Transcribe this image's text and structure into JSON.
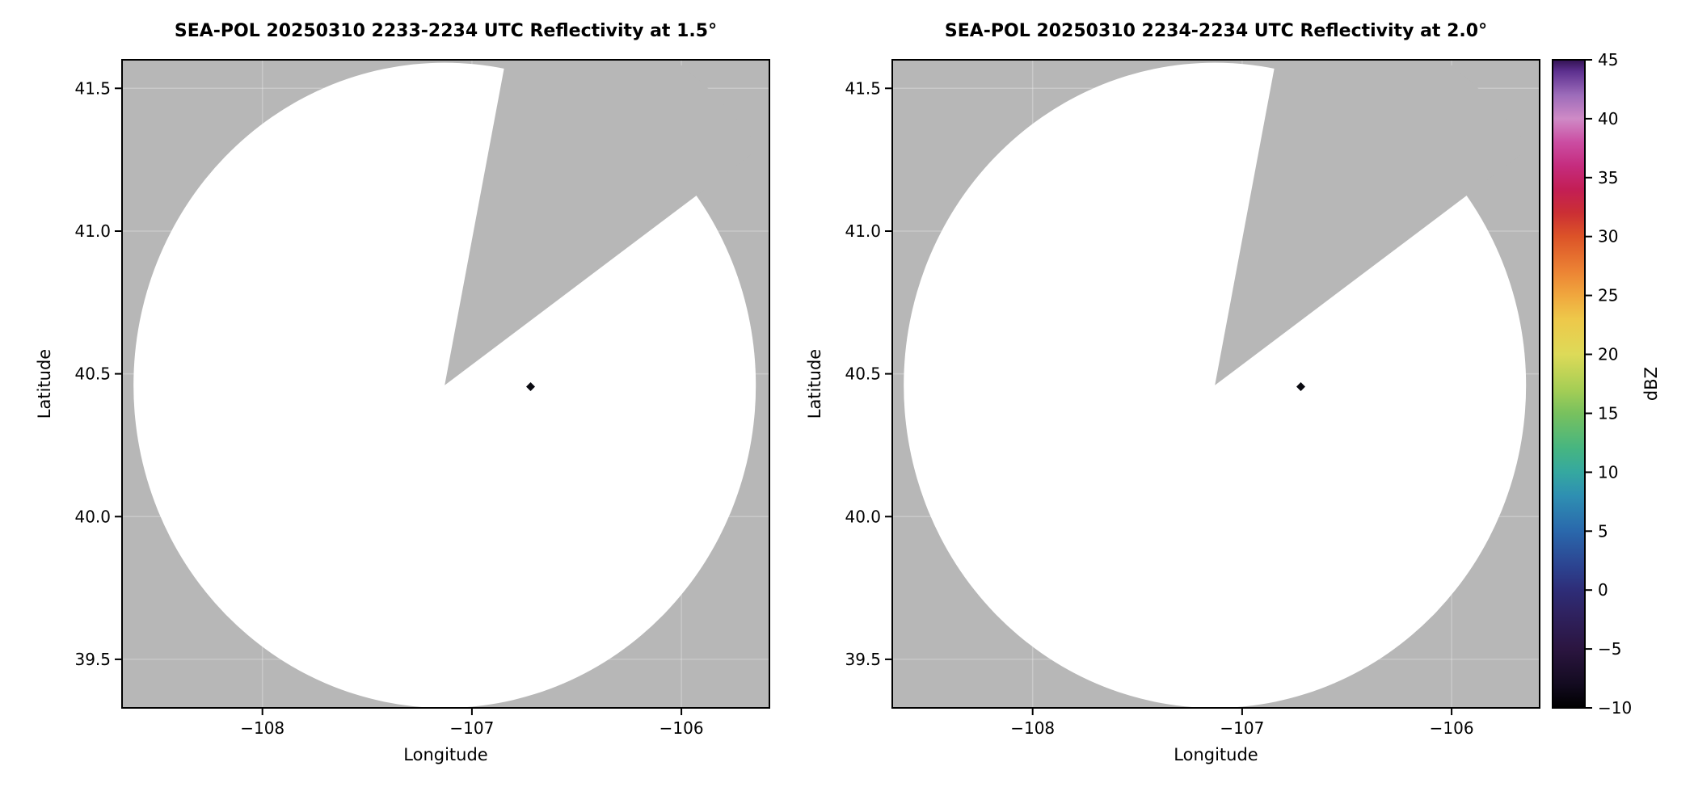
{
  "figure": {
    "background": "#ffffff"
  },
  "colors": {
    "nodata_gray": "#b7b7b7",
    "coverage_white": "#ffffff",
    "axes_border": "#000000",
    "text": "#000000",
    "gridline": "#ffffff"
  },
  "chart_data": [
    {
      "type": "radar_ppi",
      "title": "SEA-POL 20250310 2233-2234 UTC Reflectivity at 1.5°",
      "xlabel": "Longitude",
      "ylabel": "Latitude",
      "xlim": [
        -108.67,
        -105.58
      ],
      "ylim": [
        39.33,
        41.6
      ],
      "xticks": [
        -108,
        -107,
        -106
      ],
      "xtick_labels": [
        "−108",
        "−107",
        "−106"
      ],
      "yticks": [
        39.5,
        40.0,
        40.5,
        41.0,
        41.5
      ],
      "ytick_labels": [
        "39.5",
        "40.0",
        "40.5",
        "41.0",
        "41.5"
      ],
      "grid": true,
      "radar": {
        "lon": -107.13,
        "lat": 40.46,
        "range_lat_deg": 1.13
      },
      "blanked_sector_az_deg": [
        11,
        54
      ],
      "echoes": [
        {
          "lon": -106.72,
          "lat": 40.455,
          "dbz": -10,
          "color": "#0a0a10"
        }
      ]
    },
    {
      "type": "radar_ppi",
      "title": "SEA-POL 20250310 2234-2234 UTC Reflectivity at 2.0°",
      "xlabel": "Longitude",
      "ylabel": "Latitude",
      "xlim": [
        -108.67,
        -105.58
      ],
      "ylim": [
        39.33,
        41.6
      ],
      "xticks": [
        -108,
        -107,
        -106
      ],
      "xtick_labels": [
        "−108",
        "−107",
        "−106"
      ],
      "yticks": [
        39.5,
        40.0,
        40.5,
        41.0,
        41.5
      ],
      "ytick_labels": [
        "39.5",
        "40.0",
        "40.5",
        "41.0",
        "41.5"
      ],
      "grid": true,
      "radar": {
        "lon": -107.13,
        "lat": 40.46,
        "range_lat_deg": 1.13
      },
      "blanked_sector_az_deg": [
        11,
        54
      ],
      "echoes": [
        {
          "lon": -106.72,
          "lat": 40.455,
          "dbz": -10,
          "color": "#0a0a10"
        }
      ]
    },
    {
      "type": "colorbar",
      "label": "dBZ",
      "min": -10,
      "max": 45,
      "tick_values": [
        45,
        40,
        35,
        30,
        25,
        20,
        15,
        10,
        5,
        0,
        -5,
        -10
      ],
      "tick_labels": [
        "45",
        "40",
        "35",
        "30",
        "25",
        "20",
        "15",
        "10",
        "5",
        "0",
        "−5",
        "−10"
      ],
      "stops": [
        [
          -10,
          "#000000"
        ],
        [
          -8,
          "#130b20"
        ],
        [
          -5,
          "#2b1540"
        ],
        [
          -2,
          "#2f2260"
        ],
        [
          0,
          "#2e2d78"
        ],
        [
          2,
          "#2c4390"
        ],
        [
          5,
          "#2a68ac"
        ],
        [
          8,
          "#2e8fb2"
        ],
        [
          10,
          "#35a8a0"
        ],
        [
          12,
          "#46b581"
        ],
        [
          15,
          "#78c15e"
        ],
        [
          17,
          "#a5ce55"
        ],
        [
          20,
          "#ddda58"
        ],
        [
          23,
          "#eec84a"
        ],
        [
          25,
          "#f0a73e"
        ],
        [
          27,
          "#ec8434"
        ],
        [
          30,
          "#dc5328"
        ],
        [
          32,
          "#cb2f34"
        ],
        [
          34,
          "#c31e55"
        ],
        [
          36,
          "#c52c7e"
        ],
        [
          38,
          "#cb4da2"
        ],
        [
          40,
          "#cf8ac6"
        ],
        [
          42,
          "#9d6cba"
        ],
        [
          44,
          "#5e3190"
        ],
        [
          45,
          "#331253"
        ]
      ]
    }
  ]
}
